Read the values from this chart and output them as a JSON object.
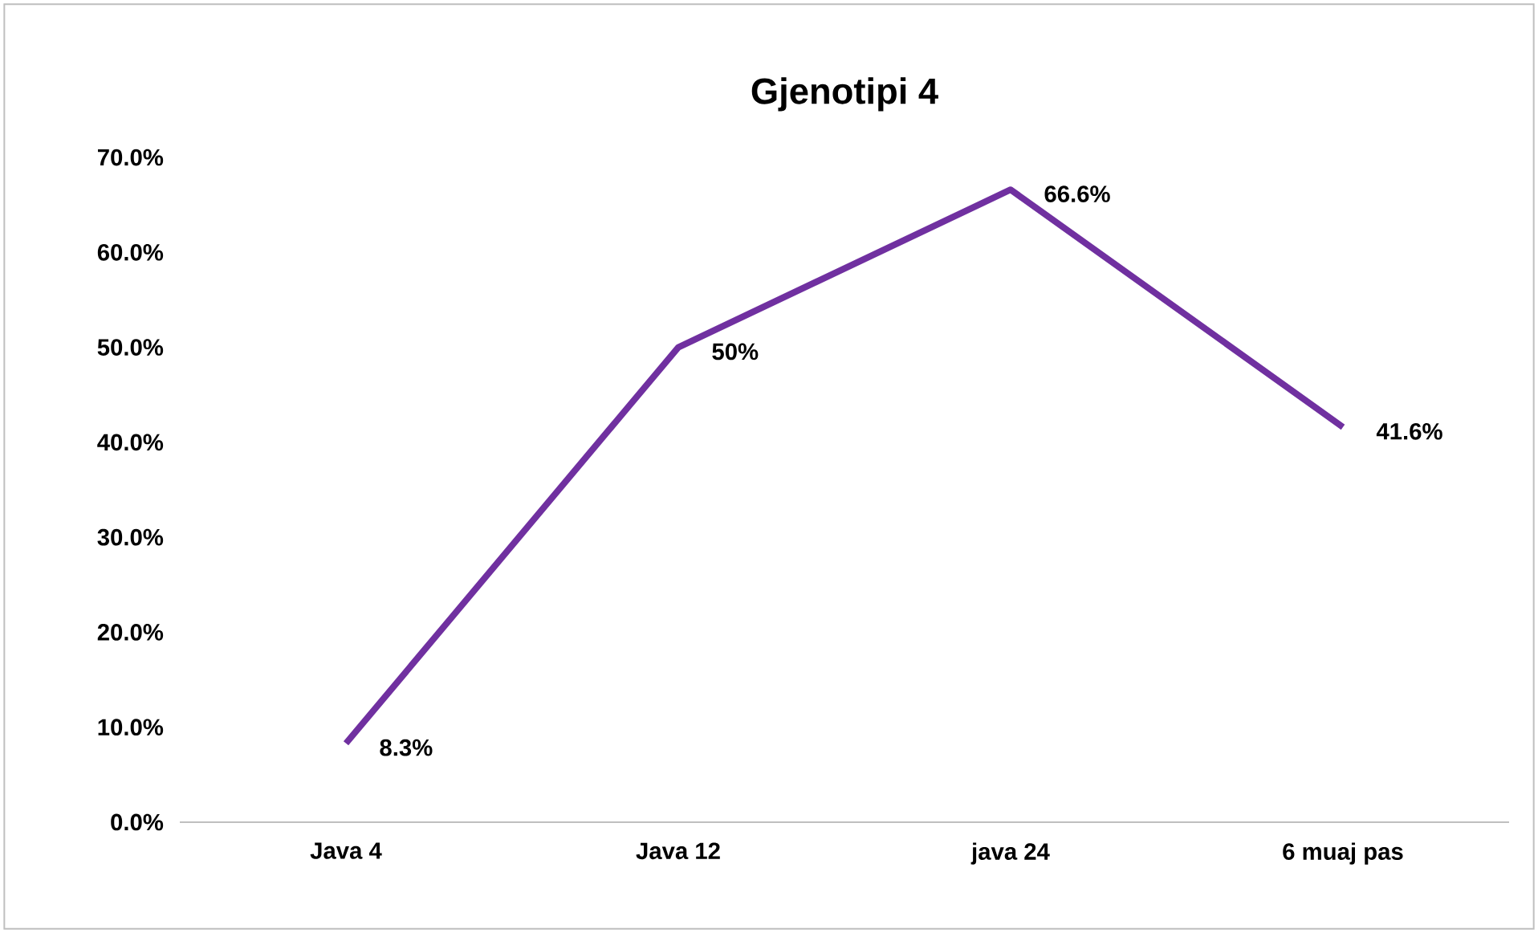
{
  "chart_data": {
    "type": "line",
    "title": "Gjenotipi 4",
    "categories": [
      "Java 4",
      "Java 12",
      "java 24",
      "6 muaj pas"
    ],
    "series": [
      {
        "color": "#7030a0",
        "values": [
          8.3,
          50,
          66.6,
          41.6
        ],
        "value_labels": [
          "8.3%",
          "50%",
          "66.6%",
          "41.6%"
        ]
      }
    ],
    "ylim": [
      0,
      70
    ],
    "yticks": [
      {
        "value": 0,
        "label": "0.0%"
      },
      {
        "value": 10,
        "label": "10.0%"
      },
      {
        "value": 20,
        "label": "20.0%"
      },
      {
        "value": 30,
        "label": "30.0%"
      },
      {
        "value": 40,
        "label": "40.0%"
      },
      {
        "value": 50,
        "label": "50.0%"
      },
      {
        "value": 60,
        "label": "60.0%"
      },
      {
        "value": 70,
        "label": "70.0%"
      }
    ],
    "grid": false,
    "marker": "none",
    "line_style": "solid"
  }
}
